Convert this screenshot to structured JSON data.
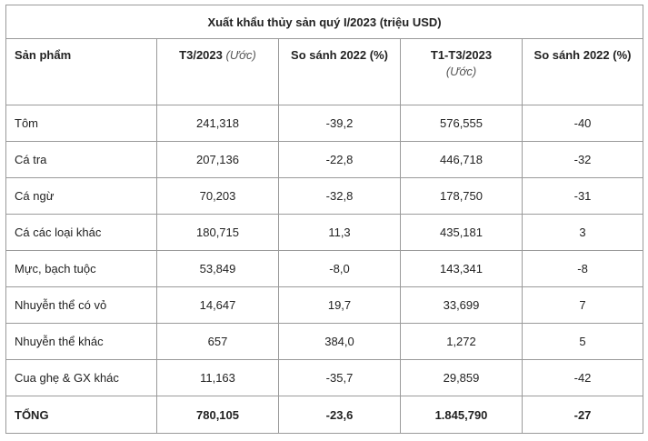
{
  "table": {
    "title": "Xuất khẩu thủy sản quý I/2023 (triệu USD)",
    "headers": {
      "product": "Sản phẩm",
      "t3": "T3/2023",
      "t3_note": "(Ước)",
      "cmp1": "So sánh 2022 (%)",
      "t1t3": "T1-T3/2023",
      "t1t3_note": "(Ước)",
      "cmp2": "So sánh 2022 (%)"
    },
    "rows": [
      {
        "product": "Tôm",
        "t3": "241,318",
        "cmp1": "-39,2",
        "t1t3": "576,555",
        "cmp2": "-40"
      },
      {
        "product": "Cá tra",
        "t3": "207,136",
        "cmp1": "-22,8",
        "t1t3": "446,718",
        "cmp2": "-32"
      },
      {
        "product": "Cá ngừ",
        "t3": "70,203",
        "cmp1": "-32,8",
        "t1t3": "178,750",
        "cmp2": "-31"
      },
      {
        "product": "Cá các loại khác",
        "t3": "180,715",
        "cmp1": "11,3",
        "t1t3": "435,181",
        "cmp2": "3"
      },
      {
        "product": "Mực, bạch tuộc",
        "t3": "53,849",
        "cmp1": "-8,0",
        "t1t3": "143,341",
        "cmp2": "-8"
      },
      {
        "product": "Nhuyễn thể có vỏ",
        "t3": "14,647",
        "cmp1": "19,7",
        "t1t3": "33,699",
        "cmp2": "7"
      },
      {
        "product": "Nhuyễn thể khác",
        "t3": "657",
        "cmp1": "384,0",
        "t1t3": "1,272",
        "cmp2": "5"
      },
      {
        "product": "Cua ghẹ & GX khác",
        "t3": "11,163",
        "cmp1": "-35,7",
        "t1t3": "29,859",
        "cmp2": "-42"
      }
    ],
    "total": {
      "product": "TỔNG",
      "t3": "780,105",
      "cmp1": "-23,6",
      "t1t3": "1.845,790",
      "cmp2": "-27"
    }
  }
}
